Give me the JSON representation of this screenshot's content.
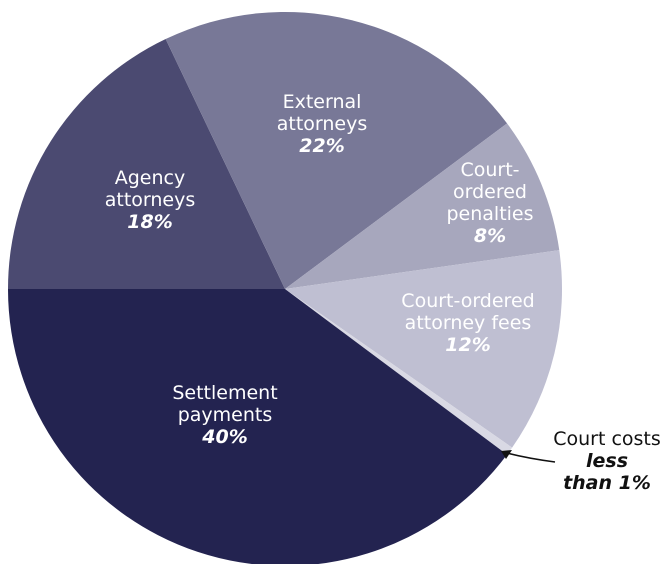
{
  "chart_data": {
    "type": "pie",
    "categories": [
      "Settlement payments",
      "Court costs",
      "Court-ordered attorney fees",
      "Court-ordered penalties",
      "External attorneys",
      "Agency attorneys"
    ],
    "values": [
      40,
      0.5,
      12,
      8,
      22,
      18
    ],
    "value_labels": [
      "40%",
      "less than 1%",
      "12%",
      "8%",
      "22%",
      "18%"
    ],
    "colors": [
      "#232350",
      "#d9d9e4",
      "#bfbfd2",
      "#a7a7bd",
      "#787897",
      "#4b4a71"
    ]
  }
}
